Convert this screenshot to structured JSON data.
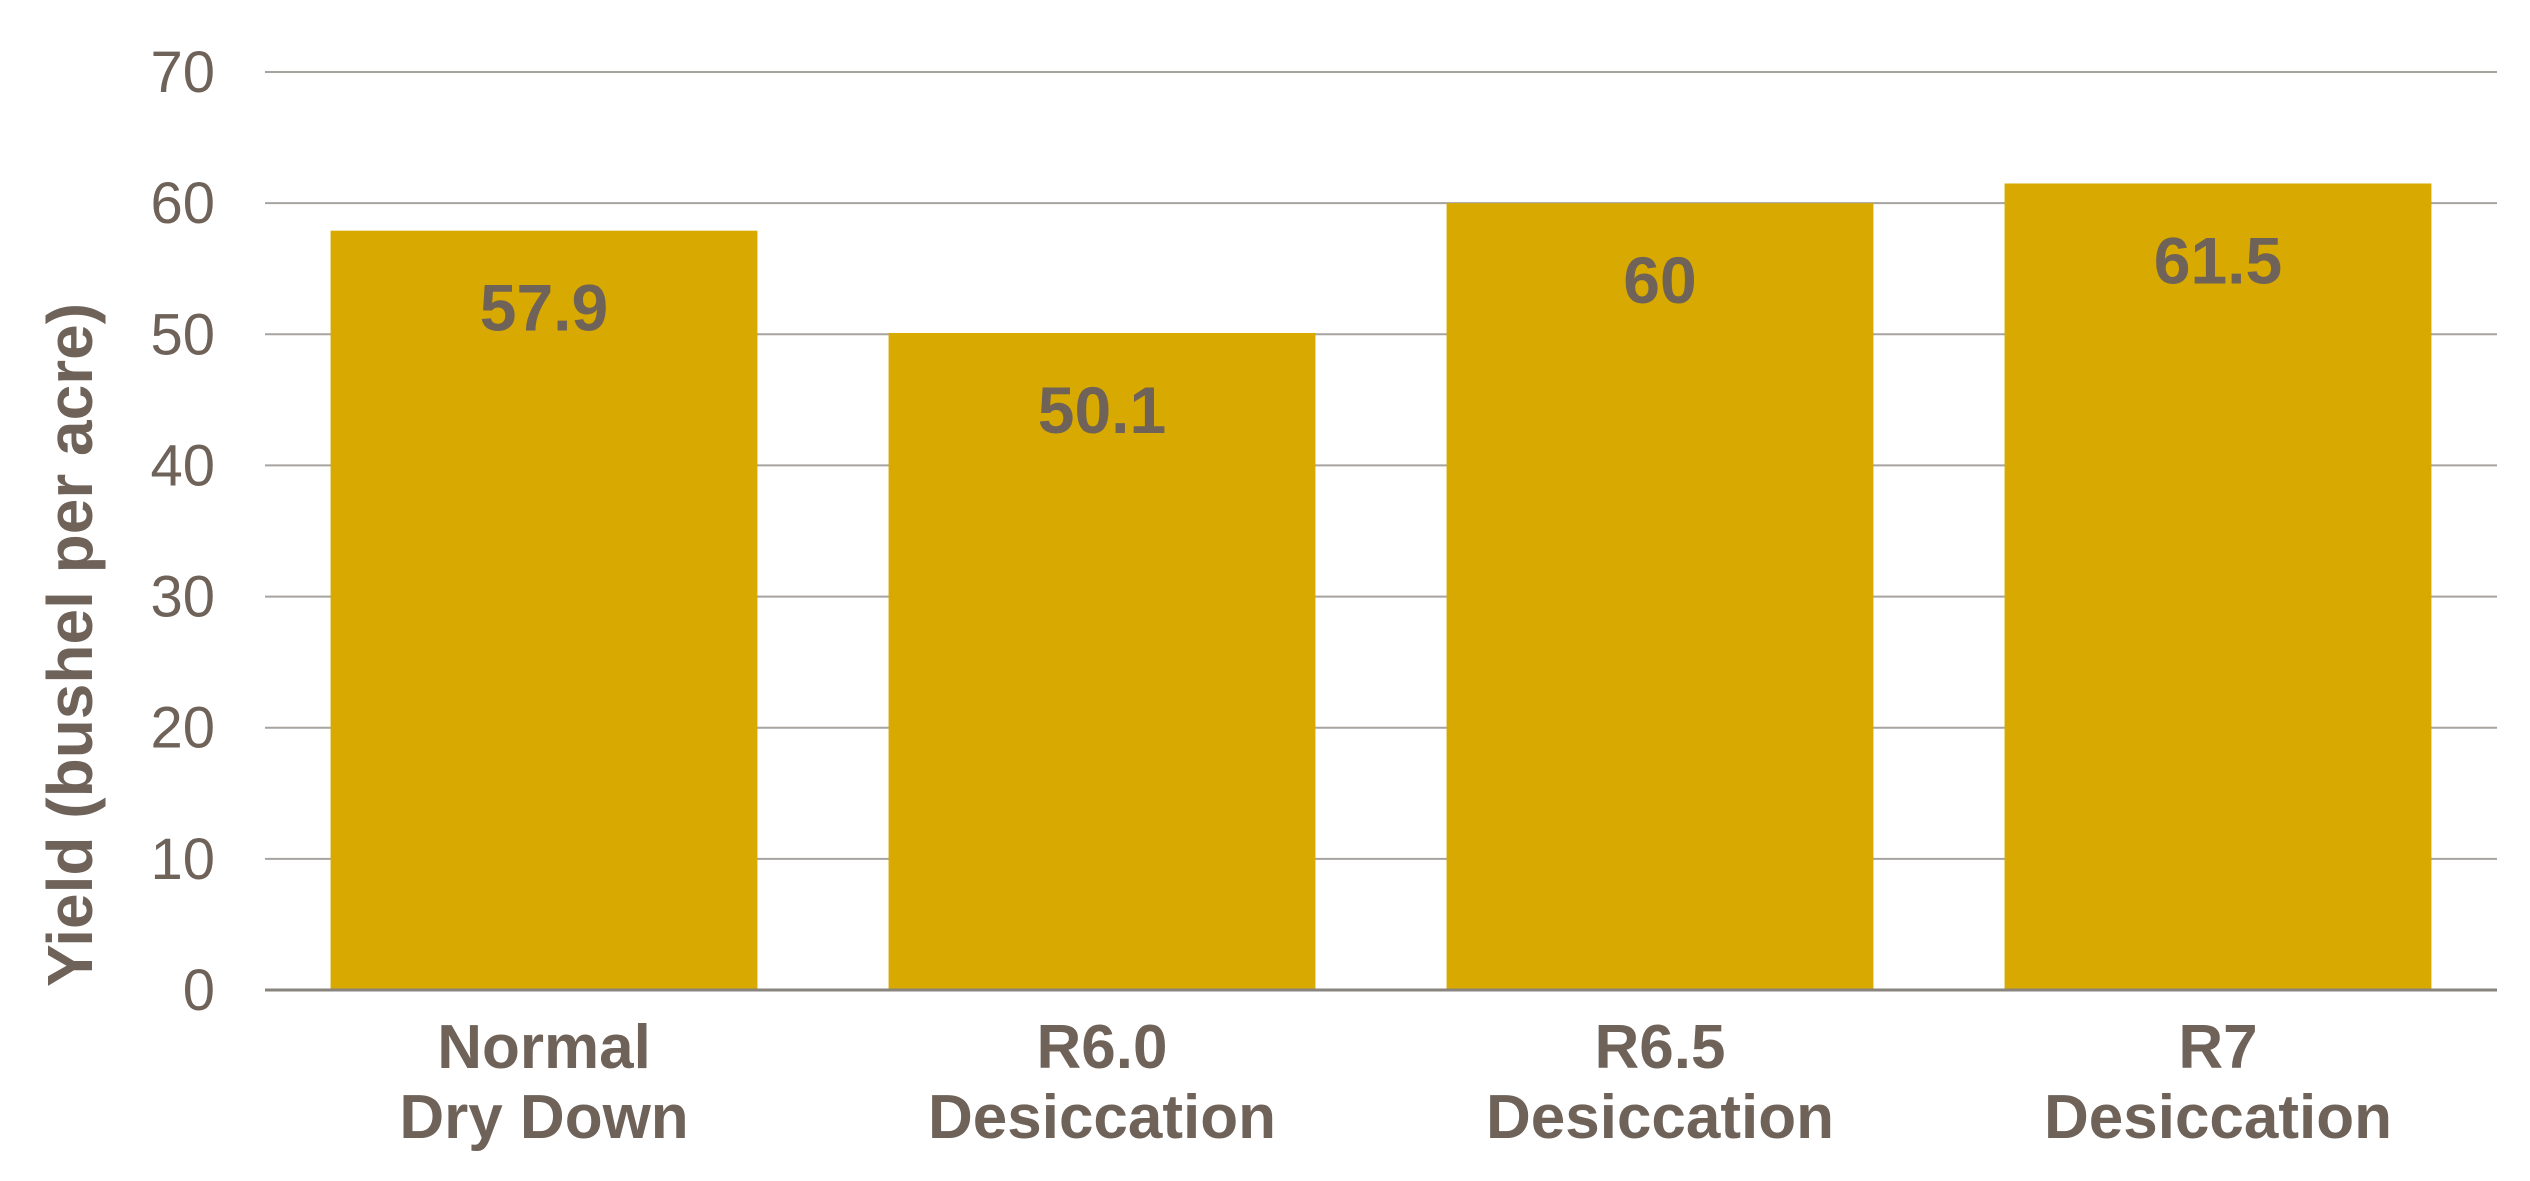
{
  "chart_data": {
    "type": "bar",
    "categories": [
      [
        "Normal",
        "Dry Down"
      ],
      [
        "R6.0",
        "Desiccation"
      ],
      [
        "R6.5",
        "Desiccation"
      ],
      [
        "R7",
        "Desiccation"
      ]
    ],
    "values": [
      57.9,
      50.1,
      60,
      61.5
    ],
    "value_labels": [
      "57.9",
      "50.1",
      "60",
      "61.5"
    ],
    "ylabel": "Yield (bushel per acre)",
    "xlabel": "",
    "ylim": [
      0,
      70
    ],
    "yticks": [
      0,
      10,
      20,
      30,
      40,
      50,
      60,
      70
    ],
    "grid": true,
    "legend": "none",
    "colors": {
      "bar": "#d8a900",
      "text": "#6e6259",
      "grid": "#a7a39f",
      "axis": "#8a847e"
    }
  }
}
